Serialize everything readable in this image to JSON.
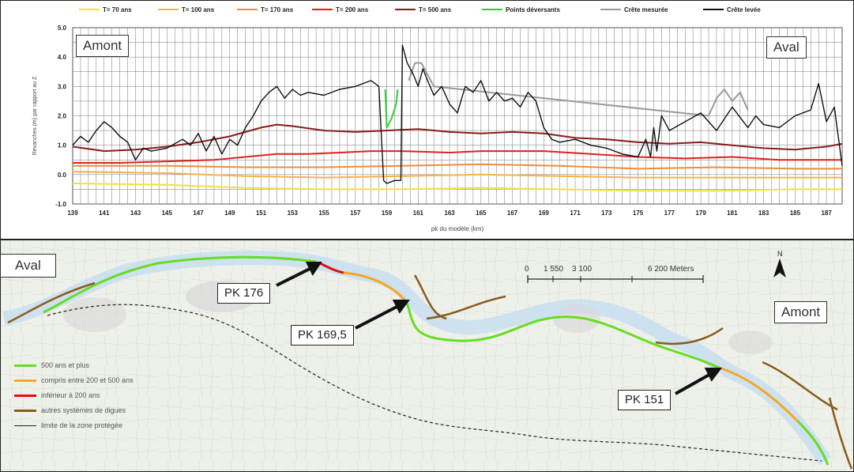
{
  "chart_data": {
    "type": "line",
    "ylim": [
      -1.0,
      5.0
    ],
    "yticks": [
      "5.0",
      "4.0",
      "3.0",
      "2.0",
      "1.0",
      "0.0",
      "-1.0"
    ],
    "ytick_values": [
      5,
      4,
      3,
      2,
      1,
      0,
      -1
    ],
    "xlim": [
      139,
      188
    ],
    "xticks": [
      "139",
      "141",
      "143",
      "145",
      "147",
      "149",
      "151",
      "153",
      "155",
      "157",
      "159",
      "161",
      "163",
      "165",
      "167",
      "169",
      "171",
      "173",
      "175",
      "177",
      "179",
      "181",
      "183",
      "185",
      "187"
    ],
    "xtick_values": [
      139,
      141,
      143,
      145,
      147,
      149,
      151,
      153,
      155,
      157,
      159,
      161,
      163,
      165,
      167,
      169,
      171,
      173,
      175,
      177,
      179,
      181,
      183,
      185,
      187
    ],
    "xlabel": "pk du modèle (km)",
    "ylabel": "Revanches (m) par rapport au Z",
    "legend_position": "top",
    "grid": true,
    "series": [
      {
        "name": "T= 70 ans",
        "color": "#f2e23a",
        "x": [
          139,
          145,
          150,
          155,
          160,
          165,
          170,
          175,
          180,
          185,
          188
        ],
        "y": [
          -0.3,
          -0.35,
          -0.45,
          -0.5,
          -0.5,
          -0.45,
          -0.5,
          -0.55,
          -0.55,
          -0.5,
          -0.5
        ]
      },
      {
        "name": "T= 100 ans",
        "color": "#f6b04a",
        "x": [
          139,
          145,
          150,
          155,
          160,
          165,
          170,
          175,
          180,
          185,
          188
        ],
        "y": [
          0.1,
          0.05,
          -0.05,
          -0.1,
          -0.05,
          0.0,
          -0.05,
          -0.1,
          -0.1,
          -0.1,
          -0.1
        ]
      },
      {
        "name": "T= 170 ans",
        "color": "#f08c3c",
        "x": [
          139,
          145,
          150,
          155,
          160,
          165,
          170,
          175,
          180,
          185,
          188
        ],
        "y": [
          0.3,
          0.3,
          0.25,
          0.25,
          0.3,
          0.35,
          0.3,
          0.2,
          0.25,
          0.2,
          0.2
        ]
      },
      {
        "name": "T= 200 ans",
        "color": "#e02020",
        "x": [
          139,
          142,
          145,
          148,
          150,
          152,
          154,
          156,
          158,
          160,
          163,
          165,
          167,
          169,
          172,
          175,
          178,
          181,
          184,
          186,
          188
        ],
        "y": [
          0.4,
          0.4,
          0.45,
          0.5,
          0.6,
          0.7,
          0.7,
          0.75,
          0.8,
          0.8,
          0.75,
          0.8,
          0.8,
          0.8,
          0.7,
          0.6,
          0.55,
          0.6,
          0.5,
          0.5,
          0.5
        ]
      },
      {
        "name": "T= 500 ans",
        "color": "#8b1a1a",
        "x": [
          139,
          141,
          143,
          145,
          147,
          149,
          150,
          151,
          152,
          153,
          155,
          157,
          159,
          161,
          163,
          165,
          167,
          169,
          171,
          173,
          175,
          177,
          179,
          181,
          183,
          185,
          187,
          188
        ],
        "y": [
          0.95,
          0.8,
          0.85,
          0.95,
          1.1,
          1.3,
          1.45,
          1.6,
          1.7,
          1.65,
          1.5,
          1.45,
          1.5,
          1.55,
          1.45,
          1.4,
          1.45,
          1.4,
          1.25,
          1.2,
          1.1,
          1.05,
          1.1,
          1.0,
          0.9,
          0.85,
          0.95,
          1.05
        ]
      },
      {
        "name": "Points déversants",
        "color": "#33cc33",
        "x": [
          158.9,
          158.95,
          159.0,
          159.3,
          159.6,
          159.7
        ],
        "y": [
          2.9,
          2.3,
          1.6,
          1.9,
          2.4,
          2.9
        ]
      },
      {
        "name": "Crête mesurée",
        "color": "#999999",
        "x": [
          160.4,
          160.8,
          161.2,
          161.6,
          162.0,
          179.5,
          180.0,
          180.5,
          181.0,
          181.5,
          182.0
        ],
        "y": [
          3.2,
          3.8,
          3.8,
          3.4,
          3.0,
          2.0,
          2.6,
          2.9,
          2.5,
          2.8,
          2.2
        ]
      },
      {
        "name": "Crête levée",
        "color": "#111111",
        "x": [
          139,
          139.5,
          140,
          140.5,
          141,
          141.5,
          142,
          142.5,
          143,
          143.5,
          144,
          145,
          146,
          146.5,
          147,
          147.5,
          148,
          148.5,
          149,
          149.5,
          150,
          150.5,
          151,
          151.5,
          152,
          152.5,
          153,
          153.5,
          154,
          155,
          156,
          157,
          158,
          158.5,
          158.8,
          159.0,
          159.5,
          159.9,
          160.0,
          160.3,
          160.7,
          161.0,
          161.3,
          161.6,
          162,
          162.5,
          163,
          163.5,
          164,
          164.5,
          165,
          165.5,
          166,
          166.5,
          167,
          167.5,
          168,
          168.5,
          169,
          169.5,
          170,
          171,
          172,
          173,
          174,
          175,
          175.5,
          175.8,
          176,
          176.2,
          176.5,
          177,
          178,
          179,
          180,
          181,
          182,
          182.5,
          183,
          184,
          185,
          186,
          186.5,
          187,
          187.5,
          188
        ],
        "y": [
          1.0,
          1.3,
          1.1,
          1.5,
          1.8,
          1.6,
          1.3,
          1.1,
          0.5,
          0.9,
          0.8,
          0.9,
          1.2,
          1.0,
          1.4,
          0.8,
          1.3,
          0.7,
          1.2,
          1.0,
          1.6,
          2.0,
          2.5,
          2.8,
          3.0,
          2.6,
          2.9,
          2.7,
          2.8,
          2.7,
          2.9,
          3.0,
          3.2,
          3.0,
          -0.2,
          -0.3,
          -0.2,
          -0.2,
          4.4,
          3.8,
          3.4,
          3.0,
          3.6,
          3.2,
          2.7,
          3.0,
          2.4,
          2.1,
          3.0,
          2.8,
          3.2,
          2.5,
          2.8,
          2.5,
          2.6,
          2.3,
          2.8,
          2.5,
          1.6,
          1.2,
          1.1,
          1.2,
          1.0,
          0.9,
          0.7,
          0.6,
          1.2,
          0.6,
          1.6,
          0.8,
          2.0,
          1.5,
          1.8,
          2.1,
          1.5,
          2.3,
          1.6,
          2.0,
          1.7,
          1.6,
          2.0,
          2.2,
          3.1,
          1.8,
          2.3,
          0.3
        ]
      }
    ]
  },
  "chart_labels": {
    "upstream": "Amont",
    "downstream": "Aval"
  },
  "map": {
    "downstream_label": "Aval",
    "upstream_label": "Amont",
    "pk_markers": [
      "PK 176",
      "PK 169,5",
      "PK 151"
    ],
    "scale_ticks": [
      "0",
      "1 550",
      "3 100",
      "6 200 Meters"
    ],
    "north_label": "N",
    "legend": [
      {
        "label": "500 ans et plus",
        "color": "#66dd22"
      },
      {
        "label": "compris entre 200 et 500 ans",
        "color": "#f5a623"
      },
      {
        "label": "inférieur à 200 ans",
        "color": "#e01010"
      },
      {
        "label": "autres systèmes de digues",
        "color": "#8b5a1a"
      },
      {
        "label": "limite de la zone protégée",
        "color": "#222222"
      }
    ]
  }
}
